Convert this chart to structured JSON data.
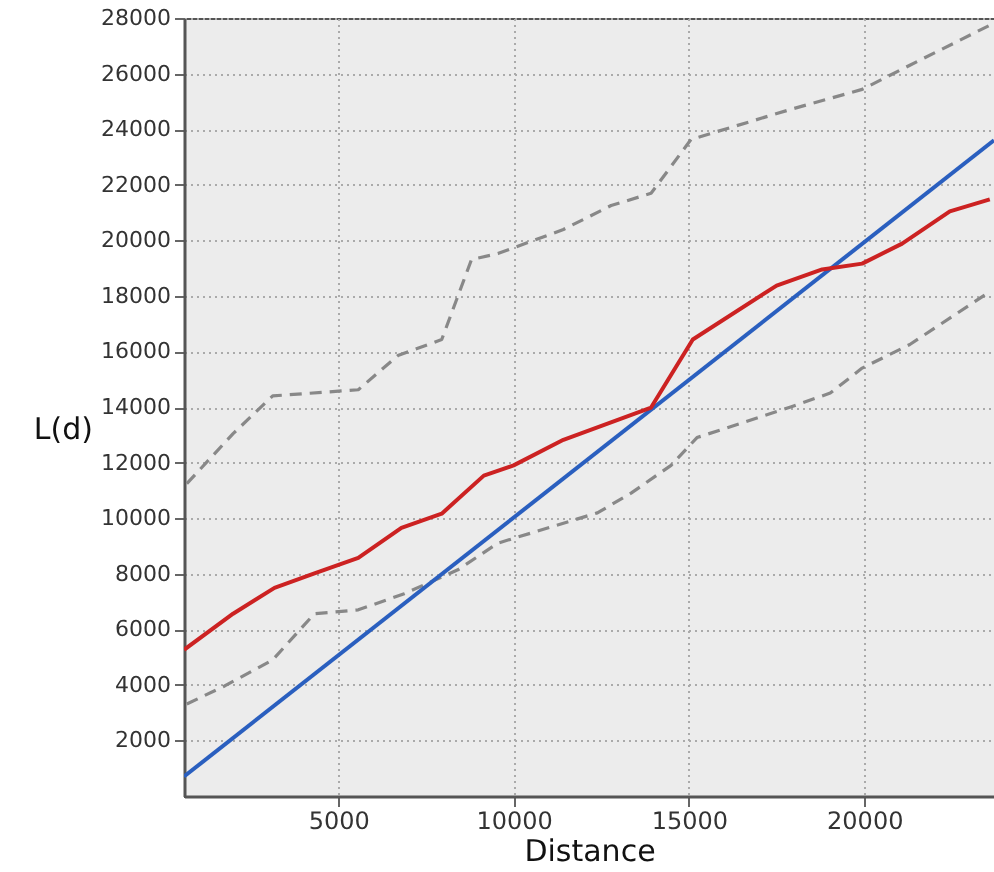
{
  "chart_data": {
    "type": "line",
    "xlabel": "Distance",
    "ylabel": "L(d)",
    "xlim": [
      600,
      23700
    ],
    "ylim": [
      0,
      28000
    ],
    "xticks": [
      5000,
      10000,
      15000,
      20000
    ],
    "yticks": [
      2000,
      4000,
      6000,
      8000,
      10000,
      12000,
      14000,
      16000,
      18000,
      20000,
      22000,
      24000,
      26000,
      28000
    ],
    "grid": true,
    "line_style": "solid",
    "marker": "none",
    "series": [
      {
        "color": "#888888",
        "line_style": "dashed",
        "x": [
          680,
          2000,
          3130,
          5570,
          6700,
          7950,
          8800,
          9550,
          11420,
          12780,
          13920,
          15060,
          17900,
          19940,
          21300,
          23580
        ],
        "values": [
          11240,
          13040,
          14400,
          14620,
          15850,
          16430,
          19310,
          19520,
          20390,
          21250,
          21690,
          23630,
          24710,
          25430,
          26300,
          27740
        ]
      },
      {
        "color": "#888888",
        "line_style": "dashed",
        "x": [
          680,
          1760,
          3130,
          4320,
          5570,
          6880,
          8410,
          9550,
          12390,
          13350,
          14490,
          15230,
          17900,
          19030,
          19940,
          21300,
          23580
        ],
        "values": [
          3310,
          3960,
          4900,
          6560,
          6700,
          7280,
          8140,
          9100,
          10190,
          10900,
          11900,
          12900,
          14000,
          14500,
          15400,
          16250,
          18150
        ]
      },
      {
        "color": "#2a5fbf",
        "x": [
          600,
          23700
        ],
        "values": [
          700,
          23600
        ]
      },
      {
        "color": "#cc2222",
        "x": [
          600,
          2000,
          3180,
          4300,
          5570,
          6800,
          7950,
          9150,
          10000,
          11420,
          13920,
          15110,
          17500,
          18800,
          19940,
          21080,
          22440,
          23580
        ],
        "values": [
          5260,
          6560,
          7490,
          8000,
          8570,
          9650,
          10160,
          11530,
          11900,
          12820,
          13980,
          16430,
          18370,
          18950,
          19160,
          19880,
          21040,
          21470
        ]
      }
    ]
  }
}
